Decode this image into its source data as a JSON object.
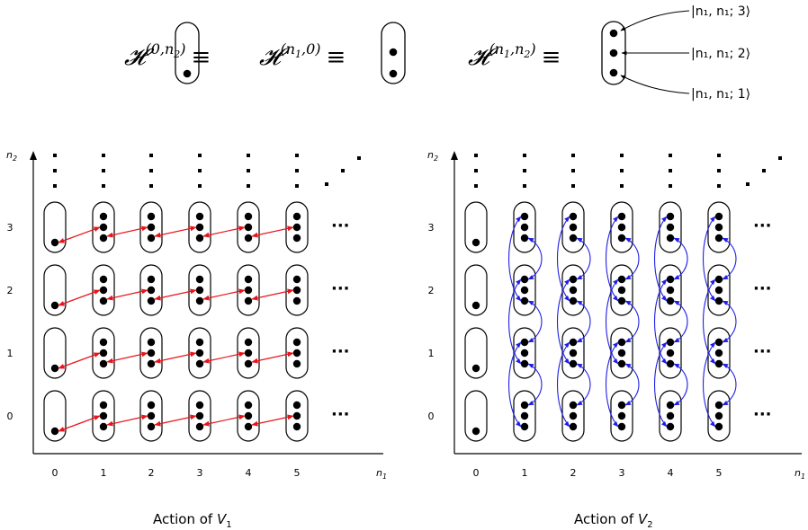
{
  "legend": {
    "h1": {
      "symbol": "𝓗",
      "sup": "(0,n",
      "sup_sub": "2",
      "sup_end": ")",
      "equiv": "≡"
    },
    "h2": {
      "symbol": "𝓗",
      "sup": "(n",
      "sup_sub": "1",
      "sup_end": ",0)",
      "equiv": "≡"
    },
    "h3": {
      "symbol": "𝓗",
      "sup": "(n",
      "sup_sub": "1",
      "sup_mid": ",n",
      "sup_sub2": "2",
      "sup_end": ")",
      "equiv": "≡"
    },
    "kets": [
      "|n₁, n₁; 3⟩",
      "|n₁, n₁; 2⟩",
      "|n₁, n₁; 1⟩"
    ]
  },
  "panels": [
    {
      "caption_prefix": "Action of ",
      "caption_var": "V",
      "caption_sub": "1",
      "x_axis_label": "n",
      "x_axis_sub": "1",
      "y_axis_label": "n",
      "y_axis_sub": "2",
      "x_ticks": [
        "0",
        "1",
        "2",
        "3",
        "4",
        "5"
      ],
      "y_ticks": [
        "0",
        "1",
        "2",
        "3"
      ],
      "arrow_color": "#e8141b",
      "ellipsis": "···"
    },
    {
      "caption_prefix": "Action of ",
      "caption_var": "V",
      "caption_sub": "2",
      "x_axis_label": "n",
      "x_axis_sub": "1",
      "y_axis_label": "n",
      "y_axis_sub": "2",
      "x_ticks": [
        "0",
        "1",
        "2",
        "3",
        "4",
        "5"
      ],
      "y_ticks": [
        "0",
        "1",
        "2",
        "3"
      ],
      "arrow_color": "#1f1fe6",
      "ellipsis": "···"
    }
  ]
}
